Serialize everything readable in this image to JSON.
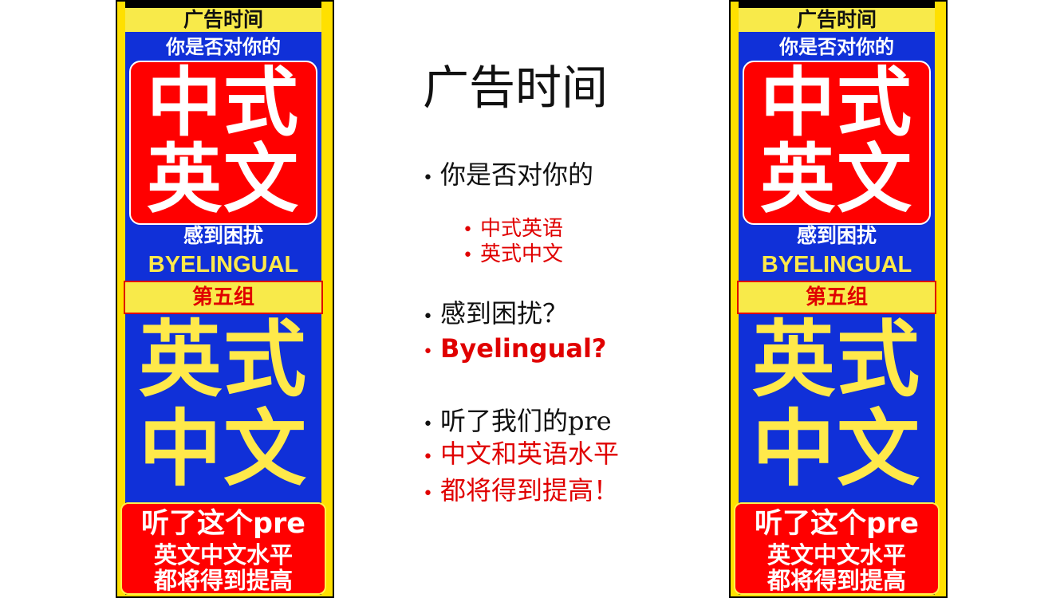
{
  "banner": {
    "top": "广告时间",
    "sub1": "你是否对你的",
    "red_line1": "中式",
    "red_line2": "英文",
    "sub2": "感到困扰",
    "brand": "BYELINGUAL",
    "group": "第五组",
    "yellow_line1": "英式",
    "yellow_line2": "中文",
    "bottom_line1": "听了这个pre",
    "bottom_line2": "英文中文水平",
    "bottom_line3": "都将得到提高"
  },
  "slide": {
    "title": "广告时间",
    "b1": "你是否对你的",
    "b1a": "中式英语",
    "b1b": "英式中文",
    "b2": "感到困扰？",
    "b3": "Byelingual?",
    "b4": "听了我们的pre",
    "b5": "中文和英语水平",
    "b6": "都将得到提高！"
  },
  "colors": {
    "accent_red": "#e00000",
    "banner_blue": "#1030d8",
    "banner_yellow": "#ffe94a"
  }
}
